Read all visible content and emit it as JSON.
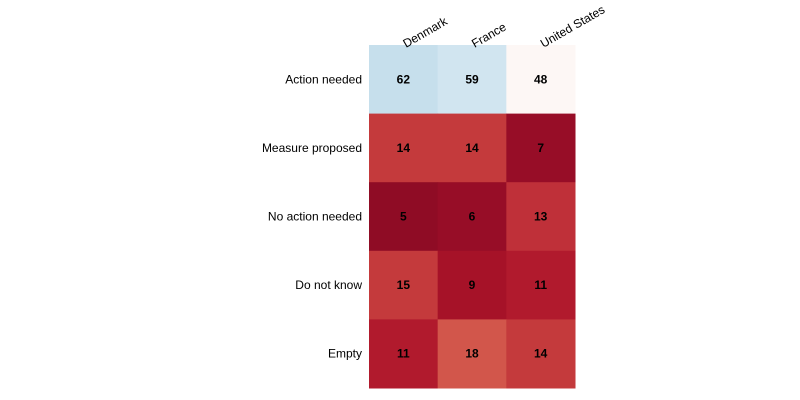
{
  "chart_data": {
    "type": "heatmap",
    "title": "",
    "xlabel": "",
    "ylabel": "",
    "columns": [
      "Denmark",
      "France",
      "United States"
    ],
    "rows": [
      "Action needed",
      "Measure proposed",
      "No action needed",
      "Do not know",
      "Empty"
    ],
    "values": [
      [
        62,
        59,
        48
      ],
      [
        14,
        14,
        7
      ],
      [
        5,
        6,
        13
      ],
      [
        15,
        9,
        11
      ],
      [
        11,
        18,
        14
      ]
    ],
    "legend": "none",
    "grid": false,
    "colors": [
      [
        "#c6dfec",
        "#d1e5f0",
        "#fdf7f5"
      ],
      [
        "#c43a3c",
        "#c43a3c",
        "#970d27"
      ],
      [
        "#8f0c25",
        "#970d27",
        "#bf3039"
      ],
      [
        "#c43a3c",
        "#a61228",
        "#b11a2d"
      ],
      [
        "#b11a2d",
        "#d2564b",
        "#c43a3c"
      ]
    ]
  }
}
